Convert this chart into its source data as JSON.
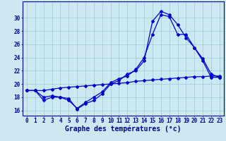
{
  "xlabel": "Graphe des températures (°c)",
  "hours": [
    0,
    1,
    2,
    3,
    4,
    5,
    6,
    7,
    8,
    9,
    10,
    11,
    12,
    13,
    14,
    15,
    16,
    17,
    18,
    19,
    20,
    21,
    22,
    23
  ],
  "line1": [
    19,
    19,
    17.5,
    18,
    18,
    17.8,
    16.2,
    17,
    17.5,
    18.5,
    20,
    20.5,
    21.5,
    22,
    23.5,
    29.5,
    31,
    30.5,
    29,
    27,
    25.5,
    23.5,
    21,
    21
  ],
  "line2": [
    19,
    19,
    18,
    18.2,
    18,
    17.5,
    16.3,
    17.2,
    18,
    18.8,
    20.2,
    20.8,
    21.2,
    22.2,
    24,
    27.5,
    30.5,
    30.2,
    27.5,
    27.5,
    25.5,
    23.8,
    21.5,
    21
  ],
  "line3": [
    19,
    19,
    19,
    19.2,
    19.4,
    19.5,
    19.6,
    19.7,
    19.8,
    19.9,
    20.0,
    20.1,
    20.2,
    20.4,
    20.5,
    20.6,
    20.7,
    20.8,
    20.9,
    21.0,
    21.1,
    21.1,
    21.2,
    21.2
  ],
  "line_color": "#0000cd",
  "bg_color": "#cce8f0",
  "grid_color": "#a0c8d8",
  "axis_color": "#00008b",
  "ylim": [
    15.2,
    32.5
  ],
  "yticks": [
    16,
    18,
    20,
    22,
    24,
    26,
    28,
    30
  ],
  "marker": "D",
  "markersize": 2.0,
  "linewidth": 0.9,
  "xlabel_fontsize": 7,
  "tick_fontsize": 5.5
}
